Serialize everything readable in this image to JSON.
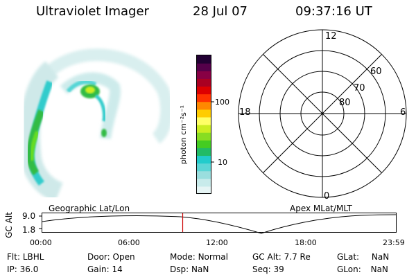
{
  "header": {
    "instrument": "Ultraviolet Imager",
    "date": "28 Jul 07",
    "time": "09:37:16 UT"
  },
  "colorbar": {
    "label": "photon cm⁻²s⁻¹",
    "ticks": [
      "100",
      "10"
    ],
    "colors": [
      "#e6f5f5",
      "#c8ebeb",
      "#9adede",
      "#5cd6d6",
      "#22cccc",
      "#22bb66",
      "#44cc22",
      "#88dd22",
      "#ccee22",
      "#ffff66",
      "#ffcc00",
      "#ff8800",
      "#ff3300",
      "#dd0000",
      "#aa0022",
      "#880044",
      "#55004a",
      "#220033"
    ]
  },
  "polar": {
    "clock_labels": [
      "12",
      "18",
      "6",
      "0"
    ],
    "lat_labels": [
      "60",
      "70",
      "80"
    ]
  },
  "timeline": {
    "left_label": "Geographic Lat/Lon",
    "right_label": "Apex  MLat/MLT",
    "axis_title": "GC Alt",
    "y_top": "9.0",
    "y_bottom": "1.8",
    "x_ticks": [
      "00:00",
      "06:00",
      "12:00",
      "18:00",
      "23:59"
    ],
    "current_time_marker_color": "#cc0000"
  },
  "footer": {
    "rows": [
      [
        {
          "key": "Flt:",
          "value": "LBHL"
        },
        {
          "key": "Door:",
          "value": "Open"
        },
        {
          "key": "Mode:",
          "value": "Normal"
        },
        {
          "key": "GC Alt:",
          "value": "7.7 Re"
        },
        {
          "key": "GLat:",
          "value": "NaN"
        }
      ],
      [
        {
          "key": "IP:",
          "value": "36.0"
        },
        {
          "key": "Gain:",
          "value": "14"
        },
        {
          "key": "Dsp:",
          "value": "NaN"
        },
        {
          "key": "Seq:",
          "value": "39"
        },
        {
          "key": "GLon:",
          "value": "NaN"
        }
      ]
    ]
  }
}
